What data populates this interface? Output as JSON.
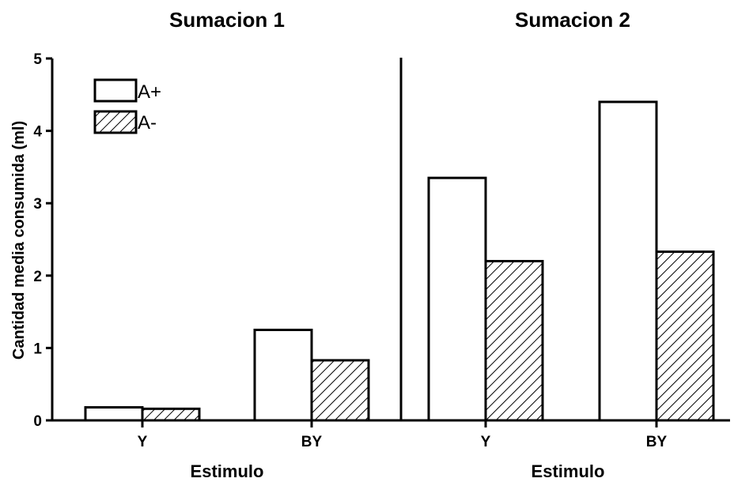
{
  "chart_data": [
    {
      "type": "bar",
      "title": "Sumacion 1",
      "xlabel": "Estimulo",
      "ylabel": "Cantidad media consumida (ml)",
      "categories": [
        "Y",
        "BY"
      ],
      "series": [
        {
          "name": "A+",
          "values": [
            0.18,
            1.25
          ],
          "fill": "white"
        },
        {
          "name": "A-",
          "values": [
            0.16,
            0.83
          ],
          "fill": "hatched"
        }
      ],
      "ylim": [
        0,
        5
      ],
      "yticks": [
        "0",
        "1",
        "2",
        "3",
        "4",
        "5"
      ],
      "legend": "top-left",
      "grid": false
    },
    {
      "type": "bar",
      "title": "Sumacion 2",
      "xlabel": "Estimulo",
      "categories": [
        "Y",
        "BY"
      ],
      "series": [
        {
          "name": "A+",
          "values": [
            3.35,
            4.4
          ],
          "fill": "white"
        },
        {
          "name": "A-",
          "values": [
            2.2,
            2.33
          ],
          "fill": "hatched"
        }
      ],
      "ylim": [
        0,
        5
      ],
      "grid": false
    }
  ],
  "colors": {
    "axis": "#000000",
    "bar_fill": "#ffffff",
    "hatch": "#000000"
  }
}
